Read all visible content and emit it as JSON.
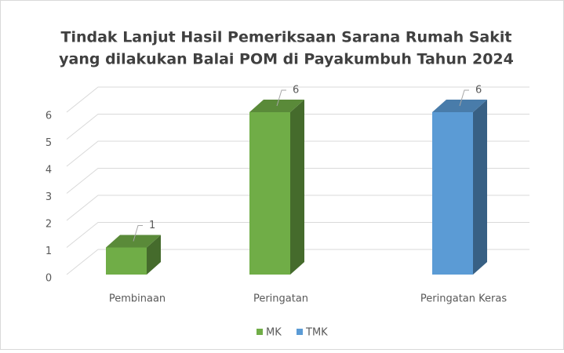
{
  "chart_data": {
    "type": "bar3d",
    "title": "Tindak Lanjut Hasil Pemeriksaan Sarana Rumah Sakit",
    "subtitle": "yang dilakukan Balai POM di Payakumbuh Tahun 2024",
    "categories": [
      "Pembinaan",
      "Peringatan",
      "Peringatan Keras"
    ],
    "series": [
      {
        "name": "MK",
        "color": "#70ad47",
        "values": [
          1,
          6,
          null
        ]
      },
      {
        "name": "TMK",
        "color": "#5b9bd5",
        "values": [
          null,
          null,
          6
        ]
      }
    ],
    "ylim": [
      0,
      6
    ],
    "yticks": [
      0,
      1,
      2,
      3,
      4,
      5,
      6
    ],
    "grid": true,
    "legend": "bottom",
    "data_labels": true
  }
}
